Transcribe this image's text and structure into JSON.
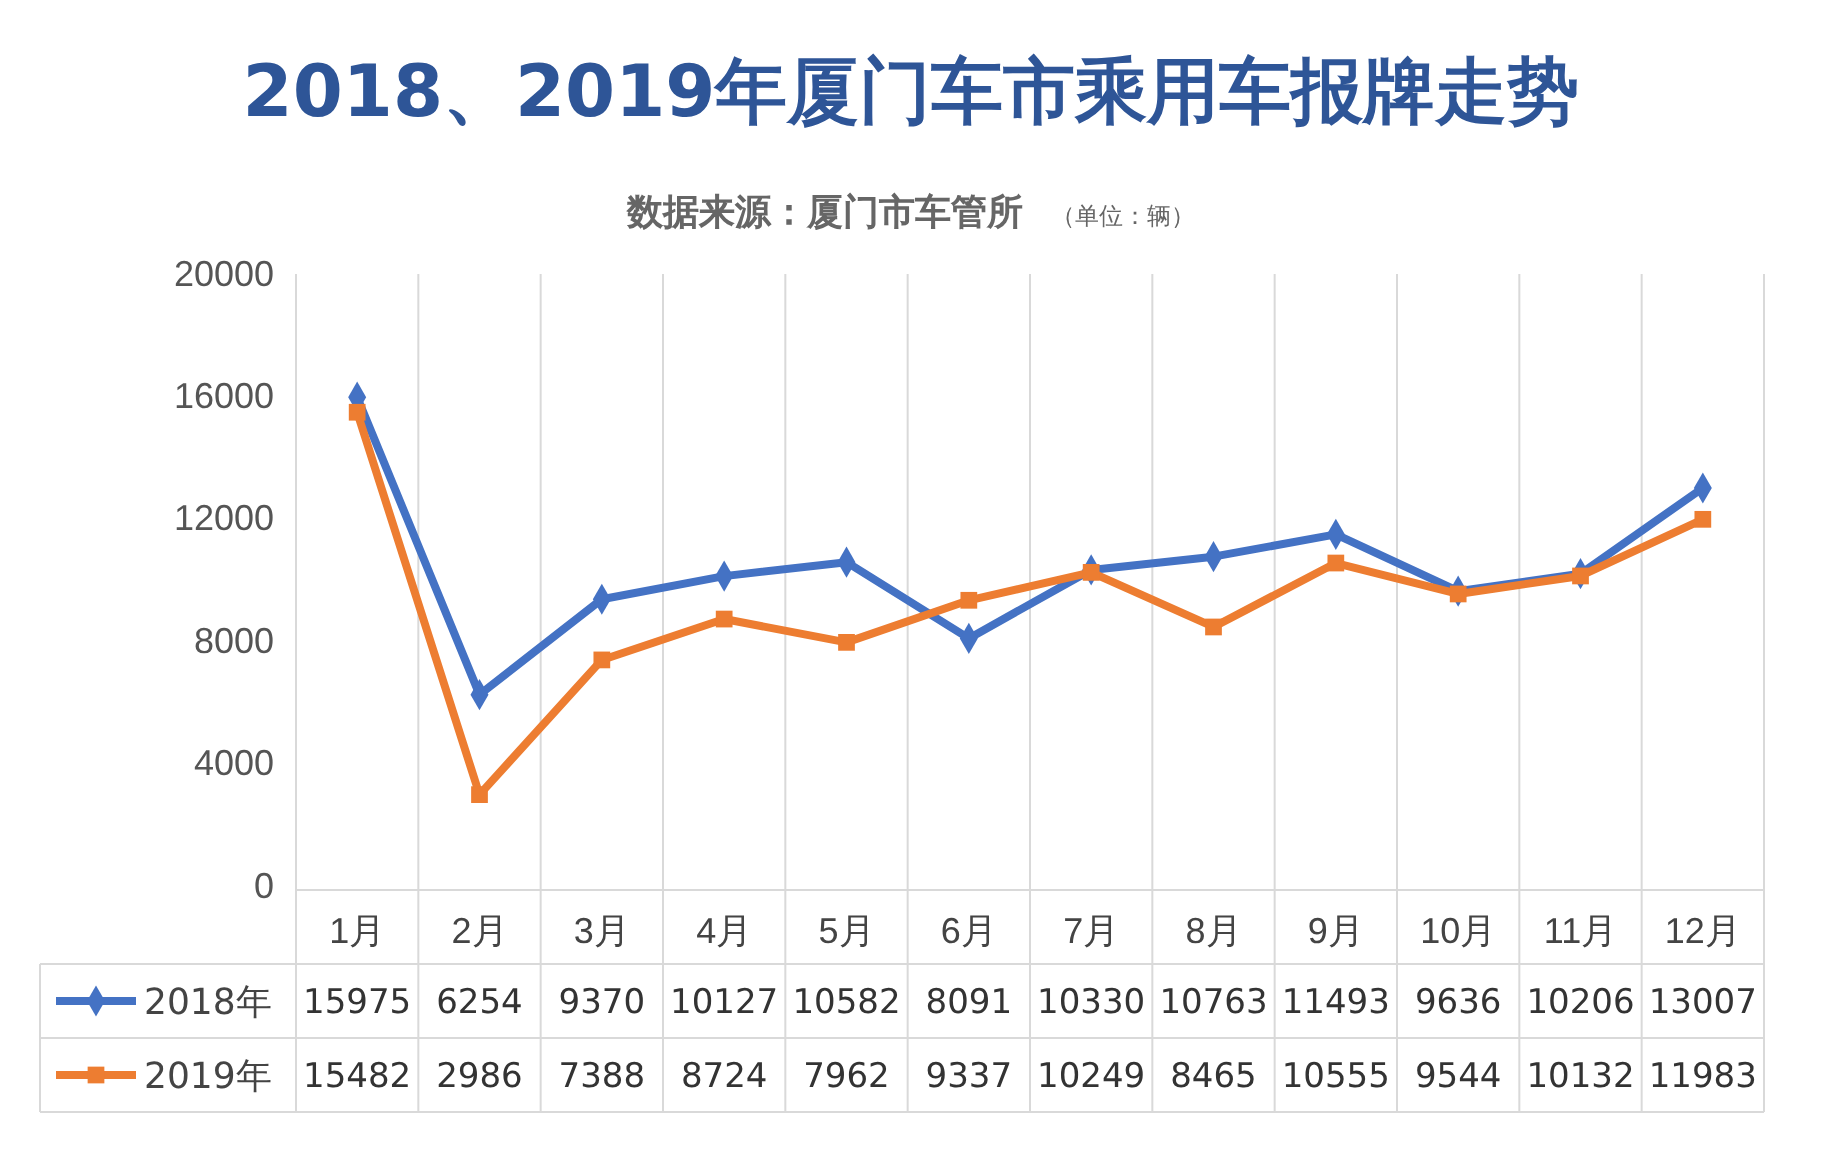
{
  "chart_data": {
    "type": "line",
    "title": "2018、2019年厦门车市乘用车报牌走势",
    "subtitle": "数据来源：厦门市车管所",
    "annotations": [
      "（单位：辆）"
    ],
    "categories": [
      "1月",
      "2月",
      "3月",
      "4月",
      "5月",
      "6月",
      "7月",
      "8月",
      "9月",
      "10月",
      "11月",
      "12月"
    ],
    "series": [
      {
        "name": "2018年",
        "color": "#4472c4",
        "marker": "diamond",
        "values": [
          15975,
          6254,
          9370,
          10127,
          10582,
          8091,
          10330,
          10763,
          11493,
          9636,
          10206,
          13007
        ]
      },
      {
        "name": "2019年",
        "color": "#ed7d31",
        "marker": "square",
        "values": [
          15482,
          2986,
          7388,
          8724,
          7962,
          9337,
          10249,
          8465,
          10555,
          9544,
          10132,
          11983
        ]
      }
    ],
    "ylim": [
      0,
      20000
    ],
    "yticks": [
      0,
      4000,
      8000,
      12000,
      16000,
      20000
    ],
    "grid": "x",
    "legend": "bottom",
    "data_labels": true,
    "line_style": "solid"
  }
}
